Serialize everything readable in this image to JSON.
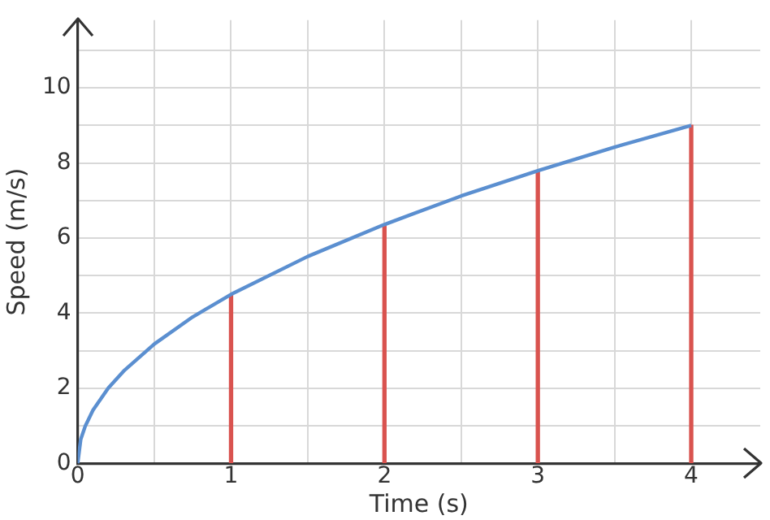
{
  "chart_data": {
    "type": "line",
    "xlabel": "Time (s)",
    "ylabel": "Speed (m/s)",
    "xlim": [
      0,
      4.45
    ],
    "ylim": [
      0,
      11.8
    ],
    "xticks": [
      0,
      {
        "value": 0.5,
        "label": null
      },
      1,
      {
        "value": 1.5,
        "label": null
      },
      2,
      {
        "value": 2.5,
        "label": null
      },
      3,
      {
        "value": 3.5,
        "label": null
      },
      4
    ],
    "yticks": [
      0,
      {
        "value": 1,
        "label": null
      },
      2,
      {
        "value": 3,
        "label": null
      },
      4,
      {
        "value": 5,
        "label": null
      },
      6,
      {
        "value": 7,
        "label": null
      },
      8,
      {
        "value": 9,
        "label": null
      },
      10,
      {
        "value": 11,
        "label": null
      }
    ],
    "grid": true,
    "legend": false,
    "marker": "none",
    "line_style": "solid",
    "series": [
      {
        "color": "#5b8fd0",
        "x": [
          0,
          0.02,
          0.05,
          0.1,
          0.2,
          0.3,
          0.5,
          0.75,
          1,
          1.5,
          2,
          2.5,
          3,
          3.5,
          4
        ],
        "values": [
          0,
          0.64,
          1.0,
          1.42,
          2.01,
          2.46,
          3.18,
          3.9,
          4.5,
          5.51,
          6.36,
          7.12,
          7.79,
          8.42,
          9.0
        ]
      },
      {
        "type": "bar",
        "color": "#d9534f",
        "x": [
          1,
          2,
          3,
          4
        ],
        "values": [
          4.5,
          6.36,
          7.79,
          9.0
        ]
      }
    ]
  }
}
